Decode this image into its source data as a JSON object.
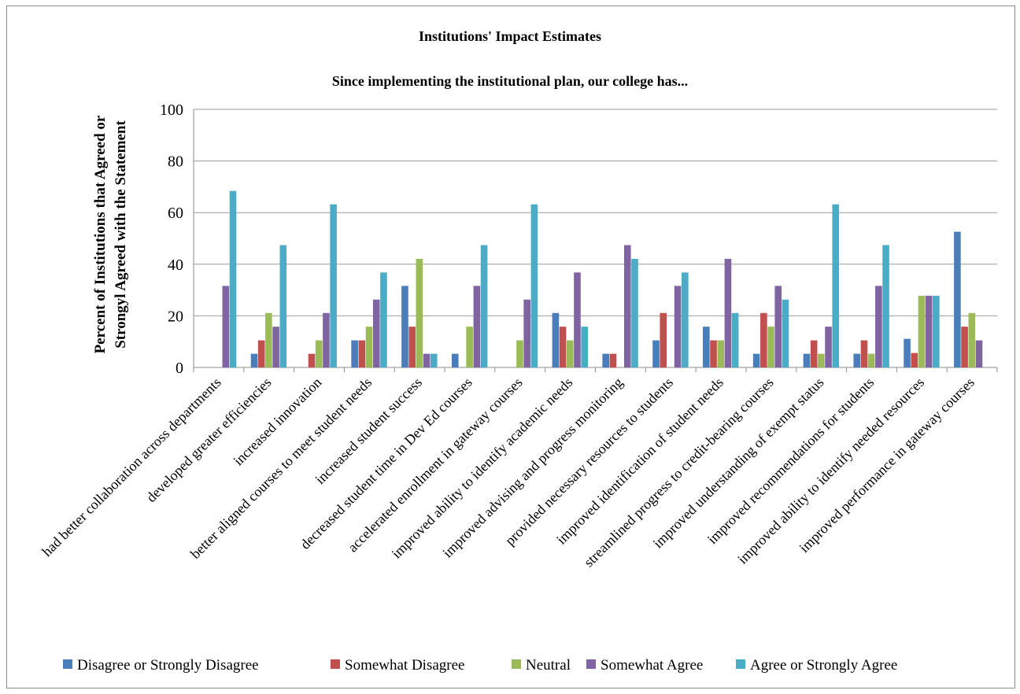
{
  "chart_data": {
    "type": "bar",
    "title": "Institutions' Impact Estimates",
    "subtitle": "Since implementing the institutional plan, our college has...",
    "ylabel_lines": [
      "Percent of Institutions that Agreed or",
      "Strongyl Agreed with the Statement"
    ],
    "xlabel": "",
    "ylim": [
      0,
      100
    ],
    "yticks": [
      0,
      20,
      40,
      60,
      80,
      100
    ],
    "grid": true,
    "legend_position": "bottom",
    "categories": [
      "had better collaboration across departments",
      "developed greater efficiencies",
      "increased innovation",
      "better aligned courses to meet student needs",
      "increased student success",
      "decreased student time in Dev Ed courses",
      "accelerated enrollment in gateway courses",
      "improved ability to identify academic needs",
      "improved advising and progress monitoring",
      "provided necessary resources to students",
      "improved identification of student needs",
      "streamlined progress to credit-bearing courses",
      "improved understanding of exempt status",
      "improved recommendations for students",
      "improved ability to identify needed resources",
      "improved performance in gateway courses"
    ],
    "series": [
      {
        "name": "Disagree or Strongly Disagree",
        "color": "#4a7ebb",
        "values": [
          0,
          5.3,
          0,
          10.5,
          31.6,
          5.3,
          0,
          21.1,
          5.3,
          10.5,
          15.8,
          5.3,
          5.3,
          5.3,
          11.1,
          52.6
        ]
      },
      {
        "name": "Somewhat Disagree",
        "color": "#c0504d",
        "values": [
          0,
          10.5,
          5.3,
          10.5,
          15.8,
          0,
          0,
          15.8,
          5.3,
          21.1,
          10.5,
          21.1,
          10.5,
          10.5,
          5.6,
          15.8
        ]
      },
      {
        "name": "Neutral",
        "color": "#9bbb59",
        "values": [
          0,
          21.1,
          10.5,
          15.8,
          42.1,
          15.8,
          10.5,
          10.5,
          0,
          0,
          10.5,
          15.8,
          5.3,
          5.3,
          27.8,
          21.1
        ]
      },
      {
        "name": "Somewhat Agree",
        "color": "#8064a2",
        "values": [
          31.6,
          15.8,
          21.1,
          26.3,
          5.3,
          31.6,
          26.3,
          36.8,
          47.4,
          31.6,
          42.1,
          31.6,
          15.8,
          31.6,
          27.8,
          10.5
        ]
      },
      {
        "name": "Agree or Strongly Agree",
        "color": "#4bacc6",
        "values": [
          68.4,
          47.4,
          63.2,
          36.8,
          5.3,
          47.4,
          63.2,
          15.8,
          42.1,
          36.8,
          21.1,
          26.3,
          63.2,
          47.4,
          27.8,
          0
        ]
      }
    ]
  }
}
